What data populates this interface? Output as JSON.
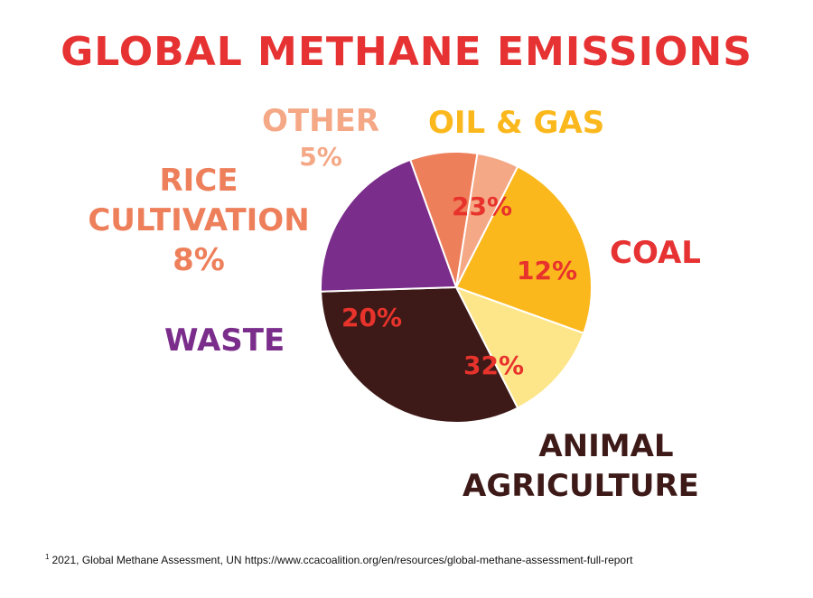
{
  "chart_data": {
    "type": "pie",
    "title": "GLOBAL METHANE EMISSIONS",
    "slices": [
      {
        "label": "OIL & GAS",
        "value": 23,
        "value_text": "23%",
        "color": "#fbb81d"
      },
      {
        "label": "COAL",
        "value": 12,
        "value_text": "12%",
        "color": "#fde68a"
      },
      {
        "label": "ANIMAL AGRICULTURE",
        "value": 32,
        "value_text": "32%",
        "color": "#3d1a17"
      },
      {
        "label": "WASTE",
        "value": 20,
        "value_text": "20%",
        "color": "#7b2d8b"
      },
      {
        "label": "RICE CULTIVATION",
        "value": 8,
        "value_text": "8%",
        "color": "#ee7f5b"
      },
      {
        "label": "OTHER",
        "value": 5,
        "value_text": "5%",
        "color": "#f4a886"
      }
    ]
  },
  "labels": {
    "oil_gas": "OIL & GAS",
    "coal": "COAL",
    "animal_line1": "ANIMAL",
    "animal_line2": "AGRICULTURE",
    "waste": "WASTE",
    "rice_line1": "RICE",
    "rice_line2": "CULTIVATION",
    "rice_pct": "8%",
    "other": "OTHER",
    "other_pct": "5%",
    "oil_gas_pct": "23%",
    "coal_pct": "12%",
    "animal_pct": "32%",
    "waste_pct": "20%"
  },
  "footnote": {
    "marker": "1",
    "text": "2021, Global Methane Assessment, UN https://www.ccacoalition.org/en/resources/global-methane-assessment-full-report"
  }
}
